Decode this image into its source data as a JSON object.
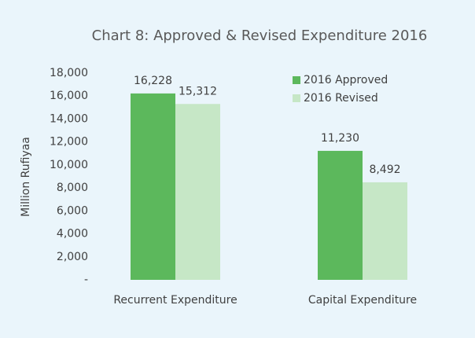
{
  "chart_data": {
    "type": "bar",
    "title": "Chart 8: Approved & Revised Expenditure 2016",
    "y_label": "Million Rufiyaa",
    "categories": [
      "Recurrent Expenditure",
      "Capital Expenditure"
    ],
    "series": [
      {
        "name": "2016 Approved",
        "color": "#5cb85c",
        "values": [
          16228,
          11230
        ],
        "value_labels": [
          "16,228",
          "11,230"
        ]
      },
      {
        "name": "2016 Revised",
        "color": "#c6e7c6",
        "values": [
          15312,
          8492
        ],
        "value_labels": [
          "15,312",
          "8,492"
        ]
      }
    ],
    "ylim": [
      0,
      18000
    ],
    "yticks": [
      {
        "value": 0,
        "label": "-"
      },
      {
        "value": 2000,
        "label": "2,000"
      },
      {
        "value": 4000,
        "label": "4,000"
      },
      {
        "value": 6000,
        "label": "6,000"
      },
      {
        "value": 8000,
        "label": "8,000"
      },
      {
        "value": 10000,
        "label": "10,000"
      },
      {
        "value": 12000,
        "label": "12,000"
      },
      {
        "value": 14000,
        "label": "14,000"
      },
      {
        "value": 16000,
        "label": "16,000"
      },
      {
        "value": 18000,
        "label": "18,000"
      }
    ],
    "grid": false,
    "legend": "top-right"
  }
}
